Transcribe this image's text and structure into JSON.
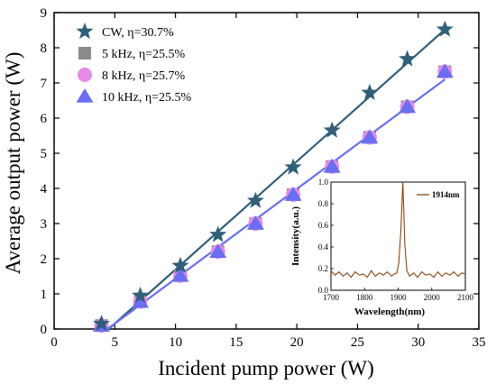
{
  "chart_data": [
    {
      "type": "line",
      "title": "",
      "xlabel": "Incident pump power (W)",
      "ylabel": "Average output power (W)",
      "xlim": [
        0,
        35
      ],
      "ylim": [
        0,
        9
      ],
      "xticks": [
        0,
        5,
        10,
        15,
        20,
        25,
        30,
        35
      ],
      "yticks": [
        0,
        1,
        2,
        3,
        4,
        5,
        6,
        7,
        8,
        9
      ],
      "legend_position": "top-left",
      "series": [
        {
          "name": "CW, η=30.7%",
          "marker": "star",
          "color": "#2f5f79",
          "x": [
            3.9,
            7.1,
            10.4,
            13.5,
            16.6,
            19.7,
            22.9,
            26.0,
            29.1,
            32.2
          ],
          "y": [
            0.15,
            0.95,
            1.8,
            2.68,
            3.65,
            4.6,
            5.65,
            6.72,
            7.68,
            8.52
          ],
          "fit": [
            [
              4.5,
              0.0
            ],
            [
              32.2,
              8.52
            ]
          ]
        },
        {
          "name": "5 kHz, η=25.5%",
          "marker": "square",
          "color": "#8a8a8a",
          "x": [
            3.9,
            7.1,
            10.4,
            13.5,
            16.6,
            19.7,
            22.9,
            26.0,
            29.1,
            32.2
          ],
          "y": [
            0.1,
            0.78,
            1.52,
            2.2,
            3.0,
            3.82,
            4.62,
            5.45,
            6.32,
            7.32
          ]
        },
        {
          "name": "8 kHz, η=25.7%",
          "marker": "circle",
          "color": "#e78ae5",
          "x": [
            3.9,
            7.1,
            10.4,
            13.5,
            16.6,
            19.7,
            22.9,
            26.0,
            29.1,
            32.2
          ],
          "y": [
            0.1,
            0.78,
            1.52,
            2.2,
            3.0,
            3.82,
            4.62,
            5.45,
            6.32,
            7.32
          ]
        },
        {
          "name": "10 kHz, η=25.5%",
          "marker": "triangle",
          "color": "#6a6ef2",
          "x": [
            3.9,
            7.1,
            10.4,
            13.5,
            16.6,
            19.7,
            22.9,
            26.0,
            29.1,
            32.2
          ],
          "y": [
            0.1,
            0.78,
            1.52,
            2.2,
            3.0,
            3.82,
            4.62,
            5.45,
            6.32,
            7.32
          ],
          "fit": [
            [
              4.4,
              0.0
            ],
            [
              32.2,
              7.1
            ]
          ]
        }
      ],
      "legend_labels": [
        "CW, η=30.7%",
        "5 kHz, η=25.5%",
        "8 kHz, η=25.7%",
        "10 kHz, η=25.5%"
      ]
    },
    {
      "type": "line",
      "title": "",
      "xlabel": "Wavelength(nm)",
      "ylabel": "Intensity(a.u.)",
      "xlim": [
        1700,
        2100
      ],
      "ylim": [
        0,
        1.0
      ],
      "xticks": [
        1700,
        1800,
        1900,
        2000,
        2100
      ],
      "yticks": [
        0.0,
        0.2,
        0.4,
        0.6,
        0.8,
        1.0
      ],
      "legend_position": "top-right",
      "series": [
        {
          "name": "1914nm",
          "color": "#8b4513",
          "x": [
            1700,
            1712,
            1724,
            1736,
            1748,
            1760,
            1772,
            1784,
            1796,
            1808,
            1820,
            1832,
            1844,
            1856,
            1868,
            1880,
            1888,
            1896,
            1902,
            1908,
            1912,
            1914,
            1916,
            1920,
            1926,
            1934,
            1946,
            1958,
            1970,
            1982,
            1994,
            2006,
            2018,
            2030,
            2042,
            2054,
            2066,
            2078,
            2090,
            2100
          ],
          "y": [
            0.18,
            0.14,
            0.17,
            0.13,
            0.16,
            0.12,
            0.17,
            0.14,
            0.15,
            0.12,
            0.18,
            0.13,
            0.16,
            0.14,
            0.17,
            0.13,
            0.15,
            0.16,
            0.25,
            0.55,
            0.86,
            1.0,
            0.8,
            0.42,
            0.18,
            0.13,
            0.16,
            0.12,
            0.17,
            0.14,
            0.15,
            0.12,
            0.17,
            0.13,
            0.16,
            0.14,
            0.17,
            0.13,
            0.16,
            0.15
          ]
        }
      ]
    }
  ]
}
